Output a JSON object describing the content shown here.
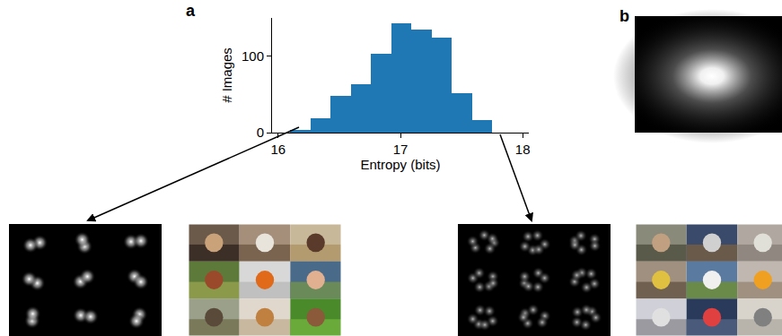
{
  "panels": [
    {
      "label": "a"
    },
    {
      "label": "b"
    }
  ],
  "chart_data": {
    "type": "histogram",
    "xlabel": "Entropy (bits)",
    "ylabel": "# Images",
    "bins": [
      16.1,
      16.265,
      16.43,
      16.595,
      16.76,
      16.925,
      17.09,
      17.255,
      17.42,
      17.585,
      17.75
    ],
    "values": [
      4,
      19,
      48,
      63,
      103,
      143,
      135,
      124,
      52,
      16
    ],
    "color": "#1f77b4",
    "xlim": [
      15.95,
      18.05
    ],
    "xticks": [
      16,
      17,
      18
    ],
    "ylim": [
      0,
      150
    ],
    "yticks": [
      0,
      100
    ],
    "grid": false
  }
}
